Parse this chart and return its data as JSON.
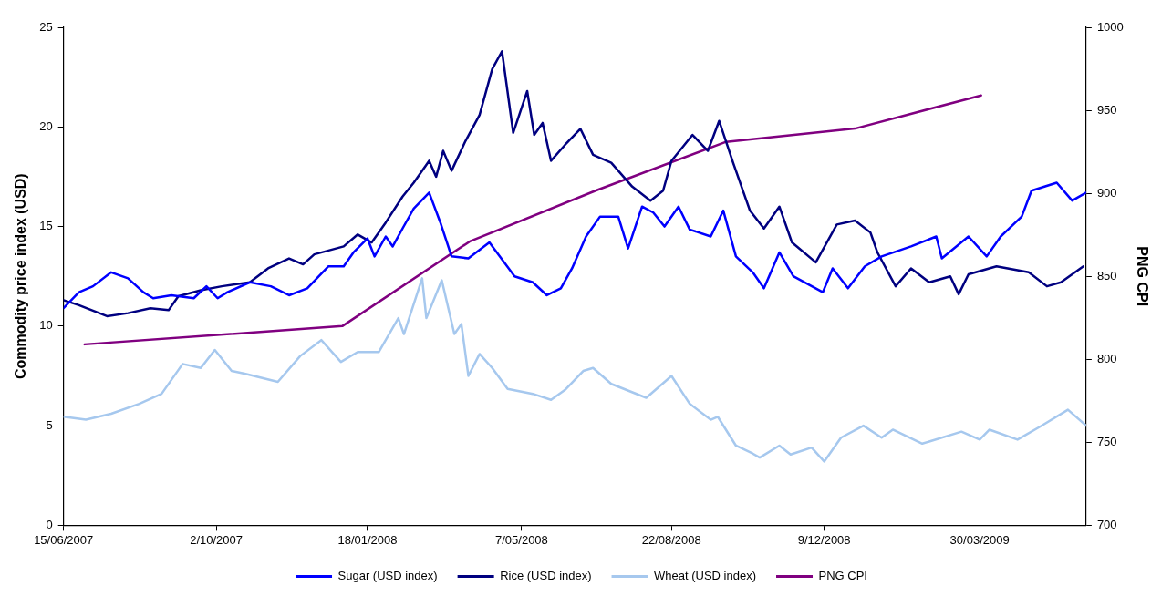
{
  "chart_data": {
    "type": "line",
    "ylabel": "Commodity price index (USD)",
    "y2label": "PNG CPI",
    "xlim": [
      "2007-06-15",
      "2009-06-14"
    ],
    "xticks": [
      {
        "value": "2007-06-15",
        "label": "15/06/2007"
      },
      {
        "value": "2007-10-02",
        "label": "2/10/2007"
      },
      {
        "value": "2008-01-18",
        "label": "18/01/2008"
      },
      {
        "value": "2008-05-07",
        "label": "7/05/2008"
      },
      {
        "value": "2008-08-22",
        "label": "22/08/2008"
      },
      {
        "value": "2008-12-09",
        "label": "9/12/2008"
      },
      {
        "value": "2009-03-30",
        "label": "30/03/2009"
      }
    ],
    "ylim": [
      0,
      25
    ],
    "yticks": [
      0,
      5,
      10,
      15,
      20,
      25
    ],
    "y2lim": [
      700,
      1000
    ],
    "y2ticks": [
      700,
      750,
      800,
      850,
      900,
      950,
      1000
    ],
    "grid": false,
    "legend": "bottom",
    "marker": "none",
    "line_style": "solid",
    "series": [
      {
        "name": "Sugar (USD index)",
        "color": "#0000ff",
        "x": [
          "2007-06-15",
          "2007-06-26",
          "2007-07-06",
          "2007-07-19",
          "2007-07-31",
          "2007-08-11",
          "2007-08-18",
          "2007-08-31",
          "2007-09-16",
          "2007-09-25",
          "2007-10-03",
          "2007-10-10",
          "2007-10-26",
          "2007-11-10",
          "2007-11-23",
          "2007-12-06",
          "2007-12-21",
          "2008-01-01",
          "2008-01-08",
          "2008-01-18",
          "2008-01-23",
          "2008-01-31",
          "2008-02-05",
          "2008-02-12",
          "2008-02-20",
          "2008-03-02",
          "2008-03-10",
          "2008-03-18",
          "2008-03-30",
          "2008-04-14",
          "2008-05-02",
          "2008-05-15",
          "2008-05-25",
          "2008-06-04",
          "2008-06-12",
          "2008-06-22",
          "2008-07-02",
          "2008-07-15",
          "2008-07-22",
          "2008-08-01",
          "2008-08-09",
          "2008-08-17",
          "2008-08-27",
          "2008-09-04",
          "2008-09-19",
          "2008-09-28",
          "2008-10-07",
          "2008-10-19",
          "2008-10-27",
          "2008-11-07",
          "2008-11-17",
          "2008-12-08",
          "2008-12-15",
          "2008-12-26",
          "2009-01-07",
          "2009-01-19",
          "2009-02-09",
          "2009-02-27",
          "2009-03-03",
          "2009-03-22",
          "2009-04-04",
          "2009-04-14",
          "2009-04-29",
          "2009-05-06",
          "2009-05-24",
          "2009-06-04",
          "2009-06-14"
        ],
        "values": [
          10.9,
          11.7,
          12.0,
          12.7,
          12.4,
          11.7,
          11.4,
          11.55,
          11.4,
          12.0,
          11.4,
          11.7,
          12.2,
          12.0,
          11.55,
          11.9,
          13.0,
          13.0,
          13.7,
          14.4,
          13.5,
          14.5,
          14.0,
          14.9,
          15.9,
          16.7,
          15.2,
          13.5,
          13.4,
          14.2,
          12.5,
          12.2,
          11.55,
          11.9,
          12.9,
          14.5,
          15.5,
          15.5,
          13.9,
          16.0,
          15.7,
          15.0,
          16.0,
          14.85,
          14.5,
          15.8,
          13.5,
          12.7,
          11.9,
          13.7,
          12.5,
          11.7,
          12.9,
          11.9,
          13.0,
          13.5,
          14.0,
          14.5,
          13.4,
          14.5,
          13.5,
          14.5,
          15.5,
          16.8,
          17.2,
          16.3,
          16.7
        ]
      },
      {
        "name": "Rice (USD index)",
        "color": "#000080",
        "x": [
          "2007-06-15",
          "2007-06-26",
          "2007-07-16",
          "2007-07-31",
          "2007-08-16",
          "2007-08-29",
          "2007-09-05",
          "2007-09-21",
          "2007-10-06",
          "2007-10-26",
          "2007-11-08",
          "2007-11-23",
          "2007-12-03",
          "2007-12-11",
          "2008-01-01",
          "2008-01-11",
          "2008-01-21",
          "2008-01-31",
          "2008-02-12",
          "2008-02-20",
          "2008-03-02",
          "2008-03-07",
          "2008-03-12",
          "2008-03-18",
          "2008-03-28",
          "2008-04-07",
          "2008-04-16",
          "2008-04-23",
          "2008-05-01",
          "2008-05-11",
          "2008-05-16",
          "2008-05-22",
          "2008-05-28",
          "2008-06-07",
          "2008-06-18",
          "2008-06-27",
          "2008-07-10",
          "2008-07-25",
          "2008-08-07",
          "2008-08-16",
          "2008-08-22",
          "2008-09-06",
          "2008-09-17",
          "2008-09-25",
          "2008-10-05",
          "2008-10-17",
          "2008-10-27",
          "2008-11-07",
          "2008-11-16",
          "2008-12-03",
          "2008-12-18",
          "2008-12-31",
          "2009-01-11",
          "2009-01-16",
          "2009-01-29",
          "2009-02-09",
          "2009-02-22",
          "2009-03-09",
          "2009-03-15",
          "2009-03-22",
          "2009-04-11",
          "2009-05-04",
          "2009-05-17",
          "2009-05-27",
          "2009-06-12"
        ],
        "values": [
          11.3,
          11.05,
          10.5,
          10.65,
          10.9,
          10.8,
          11.5,
          11.8,
          12.0,
          12.2,
          12.9,
          13.4,
          13.1,
          13.6,
          14.0,
          14.6,
          14.2,
          15.2,
          16.5,
          17.2,
          18.3,
          17.5,
          18.8,
          17.8,
          19.3,
          20.6,
          22.9,
          23.8,
          19.7,
          21.8,
          19.6,
          20.2,
          18.3,
          19.1,
          19.9,
          18.6,
          18.2,
          17.0,
          16.3,
          16.8,
          18.3,
          19.6,
          18.8,
          20.3,
          18.2,
          15.8,
          14.9,
          16.0,
          14.2,
          13.2,
          15.1,
          15.3,
          14.7,
          13.7,
          12.0,
          12.9,
          12.2,
          12.5,
          11.6,
          12.6,
          13.0,
          12.7,
          12.0,
          12.2,
          13.0
        ]
      },
      {
        "name": "Wheat (USD index)",
        "color": "#a6c8ee",
        "x": [
          "2007-06-15",
          "2007-07-01",
          "2007-07-19",
          "2007-08-08",
          "2007-08-24",
          "2007-09-08",
          "2007-09-21",
          "2007-10-01",
          "2007-10-13",
          "2007-10-23",
          "2007-11-15",
          "2007-12-01",
          "2007-12-16",
          "2007-12-30",
          "2008-01-11",
          "2008-01-26",
          "2008-02-09",
          "2008-02-13",
          "2008-02-26",
          "2008-02-29",
          "2008-03-11",
          "2008-03-20",
          "2008-03-25",
          "2008-03-30",
          "2008-04-07",
          "2008-04-16",
          "2008-04-27",
          "2008-05-15",
          "2008-05-28",
          "2008-06-07",
          "2008-06-20",
          "2008-06-27",
          "2008-07-10",
          "2008-08-04",
          "2008-08-22",
          "2008-09-04",
          "2008-09-19",
          "2008-09-24",
          "2008-10-07",
          "2008-10-19",
          "2008-10-24",
          "2008-11-07",
          "2008-11-15",
          "2008-11-30",
          "2008-12-09",
          "2008-12-21",
          "2009-01-06",
          "2009-01-19",
          "2009-01-27",
          "2009-02-17",
          "2009-03-17",
          "2009-03-30",
          "2009-04-06",
          "2009-04-26",
          "2009-05-12",
          "2009-06-01",
          "2009-06-14"
        ],
        "values": [
          5.45,
          5.3,
          5.6,
          6.1,
          6.6,
          8.1,
          7.9,
          8.8,
          7.75,
          7.6,
          7.2,
          8.5,
          9.3,
          8.2,
          8.7,
          8.7,
          10.4,
          9.6,
          12.4,
          10.4,
          12.3,
          9.6,
          10.1,
          7.5,
          8.6,
          7.9,
          6.85,
          6.6,
          6.3,
          6.8,
          7.75,
          7.9,
          7.1,
          6.4,
          7.5,
          6.1,
          5.3,
          5.45,
          4.0,
          3.6,
          3.4,
          4.0,
          3.55,
          3.9,
          3.2,
          4.4,
          5.0,
          4.4,
          4.8,
          4.1,
          4.7,
          4.3,
          4.8,
          4.3,
          4.95,
          5.8,
          5.0
        ]
      },
      {
        "name": "PNG CPI",
        "color": "#800080",
        "axis": "y2",
        "x": [
          "2007-06-30",
          "2007-12-31",
          "2008-03-31",
          "2008-06-30",
          "2008-09-30",
          "2008-12-31",
          "2009-03-31"
        ],
        "values": [
          809,
          820,
          871,
          902,
          931,
          939,
          959
        ]
      }
    ]
  }
}
